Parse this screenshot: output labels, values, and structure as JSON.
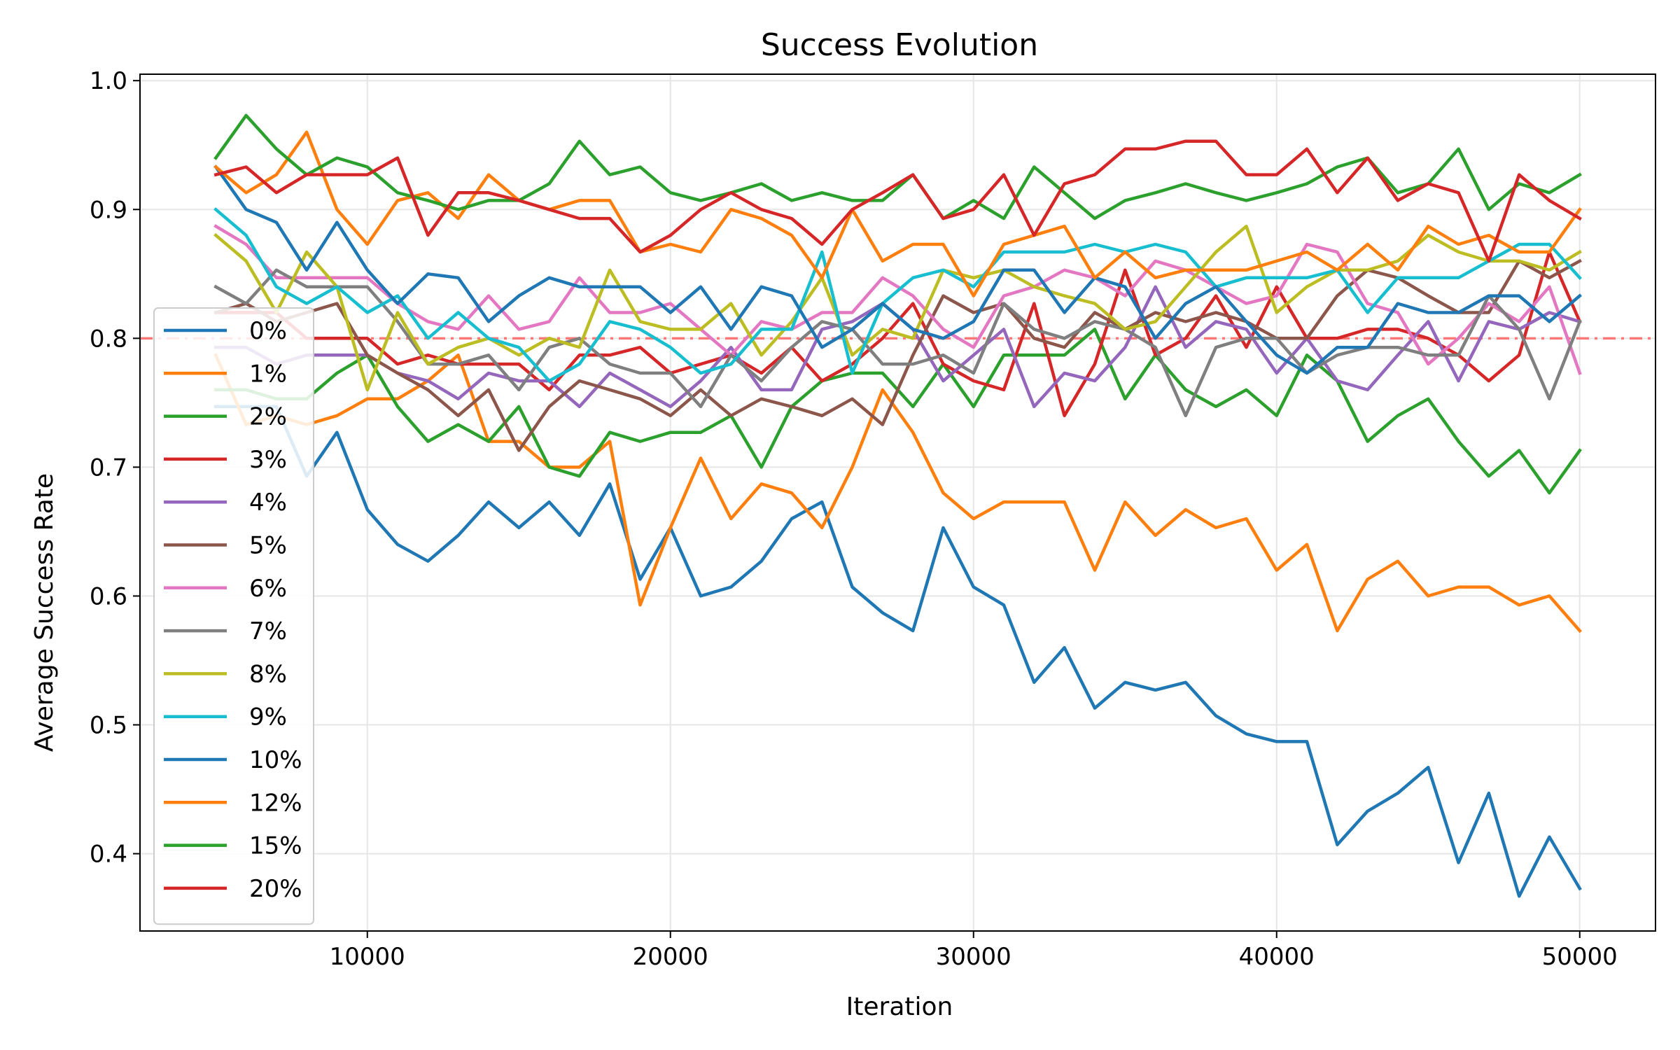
{
  "chart_data": {
    "type": "line",
    "title": "Success Evolution",
    "xlabel": "Iteration",
    "ylabel": "Average Success Rate",
    "xlim": [
      2500,
      52500
    ],
    "ylim": [
      0.34,
      1.005
    ],
    "xticks": [
      10000,
      20000,
      30000,
      40000,
      50000
    ],
    "xtick_labels": [
      "10000",
      "20000",
      "30000",
      "40000",
      "50000"
    ],
    "yticks": [
      0.4,
      0.5,
      0.6,
      0.7,
      0.8,
      0.9,
      1.0
    ],
    "ytick_labels": [
      "0.4",
      "0.5",
      "0.6",
      "0.7",
      "0.8",
      "0.9",
      "1.0"
    ],
    "grid": true,
    "legend_position": "center-left",
    "reference_line": {
      "y": 0.8,
      "style": "dashed",
      "color": "#ff6b6b"
    },
    "x": [
      5000,
      6000,
      7000,
      8000,
      9000,
      10000,
      11000,
      12000,
      13000,
      14000,
      15000,
      16000,
      17000,
      18000,
      19000,
      20000,
      21000,
      22000,
      23000,
      24000,
      25000,
      26000,
      27000,
      28000,
      29000,
      30000,
      31000,
      32000,
      33000,
      34000,
      35000,
      36000,
      37000,
      38000,
      39000,
      40000,
      41000,
      42000,
      43000,
      44000,
      45000,
      46000,
      47000,
      48000,
      49000,
      50000
    ],
    "series": [
      {
        "name": "0%",
        "color": "#1f77b4",
        "values": [
          0.747,
          0.747,
          0.747,
          0.693,
          0.727,
          0.667,
          0.64,
          0.627,
          0.647,
          0.673,
          0.653,
          0.673,
          0.647,
          0.687,
          0.613,
          0.653,
          0.6,
          0.607,
          0.627,
          0.66,
          0.673,
          0.607,
          0.587,
          0.573,
          0.653,
          0.607,
          0.593,
          0.533,
          0.56,
          0.513,
          0.533,
          0.527,
          0.533,
          0.507,
          0.493,
          0.487,
          0.487,
          0.407,
          0.433,
          0.447,
          0.467,
          0.393,
          0.447,
          0.367,
          0.413,
          0.373
        ]
      },
      {
        "name": "1%",
        "color": "#ff7f0e",
        "values": [
          0.787,
          0.733,
          0.74,
          0.733,
          0.74,
          0.753,
          0.753,
          0.767,
          0.787,
          0.72,
          0.72,
          0.7,
          0.7,
          0.72,
          0.593,
          0.653,
          0.707,
          0.66,
          0.687,
          0.68,
          0.653,
          0.7,
          0.76,
          0.727,
          0.68,
          0.66,
          0.673,
          0.673,
          0.673,
          0.62,
          0.673,
          0.647,
          0.667,
          0.653,
          0.66,
          0.62,
          0.64,
          0.573,
          0.613,
          0.627,
          0.6,
          0.607,
          0.607,
          0.593,
          0.6,
          0.573
        ]
      },
      {
        "name": "2%",
        "color": "#2ca02c",
        "values": [
          0.76,
          0.76,
          0.753,
          0.753,
          0.773,
          0.787,
          0.747,
          0.72,
          0.733,
          0.72,
          0.747,
          0.7,
          0.693,
          0.727,
          0.72,
          0.727,
          0.727,
          0.74,
          0.7,
          0.747,
          0.767,
          0.773,
          0.773,
          0.747,
          0.78,
          0.747,
          0.787,
          0.787,
          0.787,
          0.807,
          0.753,
          0.787,
          0.76,
          0.747,
          0.76,
          0.74,
          0.787,
          0.767,
          0.72,
          0.74,
          0.753,
          0.72,
          0.693,
          0.713,
          0.68,
          0.713
        ]
      },
      {
        "name": "3%",
        "color": "#d62728",
        "values": [
          0.82,
          0.82,
          0.82,
          0.8,
          0.8,
          0.8,
          0.78,
          0.787,
          0.78,
          0.78,
          0.78,
          0.76,
          0.787,
          0.787,
          0.793,
          0.773,
          0.78,
          0.787,
          0.773,
          0.793,
          0.767,
          0.78,
          0.8,
          0.827,
          0.78,
          0.767,
          0.76,
          0.827,
          0.74,
          0.78,
          0.853,
          0.787,
          0.8,
          0.833,
          0.793,
          0.84,
          0.8,
          0.8,
          0.807,
          0.807,
          0.8,
          0.787,
          0.767,
          0.787,
          0.867,
          0.813
        ]
      },
      {
        "name": "4%",
        "color": "#9467bd",
        "values": [
          0.793,
          0.793,
          0.78,
          0.787,
          0.787,
          0.787,
          0.773,
          0.767,
          0.753,
          0.773,
          0.767,
          0.767,
          0.747,
          0.773,
          0.76,
          0.747,
          0.767,
          0.793,
          0.76,
          0.76,
          0.807,
          0.813,
          0.827,
          0.807,
          0.767,
          0.787,
          0.807,
          0.747,
          0.773,
          0.767,
          0.793,
          0.84,
          0.793,
          0.813,
          0.807,
          0.773,
          0.8,
          0.767,
          0.76,
          0.787,
          0.813,
          0.767,
          0.813,
          0.807,
          0.82,
          0.813
        ]
      },
      {
        "name": "5%",
        "color": "#8c564b",
        "values": [
          0.82,
          0.827,
          0.813,
          0.82,
          0.827,
          0.787,
          0.773,
          0.76,
          0.74,
          0.76,
          0.713,
          0.747,
          0.767,
          0.76,
          0.753,
          0.74,
          0.76,
          0.74,
          0.753,
          0.747,
          0.74,
          0.753,
          0.733,
          0.787,
          0.833,
          0.82,
          0.827,
          0.8,
          0.793,
          0.82,
          0.807,
          0.82,
          0.813,
          0.82,
          0.813,
          0.8,
          0.8,
          0.833,
          0.853,
          0.847,
          0.833,
          0.82,
          0.82,
          0.86,
          0.847,
          0.86
        ]
      },
      {
        "name": "6%",
        "color": "#e377c2",
        "values": [
          0.887,
          0.873,
          0.847,
          0.847,
          0.847,
          0.847,
          0.827,
          0.813,
          0.807,
          0.833,
          0.807,
          0.813,
          0.847,
          0.82,
          0.82,
          0.827,
          0.807,
          0.787,
          0.813,
          0.807,
          0.82,
          0.82,
          0.847,
          0.833,
          0.807,
          0.793,
          0.833,
          0.84,
          0.853,
          0.847,
          0.833,
          0.86,
          0.853,
          0.84,
          0.827,
          0.833,
          0.873,
          0.867,
          0.827,
          0.82,
          0.78,
          0.8,
          0.827,
          0.813,
          0.84,
          0.773
        ]
      },
      {
        "name": "7%",
        "color": "#7f7f7f",
        "values": [
          0.84,
          0.827,
          0.853,
          0.84,
          0.84,
          0.84,
          0.813,
          0.78,
          0.78,
          0.787,
          0.76,
          0.793,
          0.8,
          0.78,
          0.773,
          0.773,
          0.747,
          0.787,
          0.767,
          0.793,
          0.813,
          0.807,
          0.78,
          0.78,
          0.787,
          0.773,
          0.827,
          0.807,
          0.8,
          0.813,
          0.807,
          0.793,
          0.74,
          0.793,
          0.8,
          0.8,
          0.773,
          0.787,
          0.793,
          0.793,
          0.787,
          0.787,
          0.833,
          0.807,
          0.753,
          0.813
        ]
      },
      {
        "name": "8%",
        "color": "#bcbd22",
        "values": [
          0.88,
          0.86,
          0.82,
          0.867,
          0.84,
          0.76,
          0.82,
          0.78,
          0.793,
          0.8,
          0.787,
          0.8,
          0.793,
          0.853,
          0.813,
          0.807,
          0.807,
          0.827,
          0.787,
          0.813,
          0.847,
          0.787,
          0.807,
          0.8,
          0.853,
          0.847,
          0.853,
          0.84,
          0.833,
          0.827,
          0.807,
          0.813,
          0.84,
          0.867,
          0.887,
          0.82,
          0.84,
          0.853,
          0.853,
          0.86,
          0.88,
          0.867,
          0.86,
          0.86,
          0.853,
          0.867
        ]
      },
      {
        "name": "9%",
        "color": "#17becf",
        "values": [
          0.9,
          0.88,
          0.84,
          0.827,
          0.84,
          0.82,
          0.833,
          0.8,
          0.82,
          0.8,
          0.793,
          0.767,
          0.78,
          0.813,
          0.807,
          0.793,
          0.773,
          0.78,
          0.807,
          0.807,
          0.867,
          0.773,
          0.827,
          0.847,
          0.853,
          0.84,
          0.867,
          0.867,
          0.867,
          0.873,
          0.867,
          0.873,
          0.867,
          0.84,
          0.847,
          0.847,
          0.847,
          0.853,
          0.82,
          0.847,
          0.847,
          0.847,
          0.86,
          0.873,
          0.873,
          0.847
        ]
      },
      {
        "name": "10%",
        "color": "#1f77b4",
        "values": [
          0.933,
          0.9,
          0.89,
          0.853,
          0.89,
          0.853,
          0.827,
          0.85,
          0.847,
          0.813,
          0.833,
          0.847,
          0.84,
          0.84,
          0.84,
          0.82,
          0.84,
          0.807,
          0.84,
          0.833,
          0.793,
          0.807,
          0.827,
          0.807,
          0.8,
          0.813,
          0.853,
          0.853,
          0.82,
          0.847,
          0.84,
          0.8,
          0.827,
          0.84,
          0.813,
          0.787,
          0.773,
          0.793,
          0.793,
          0.827,
          0.82,
          0.82,
          0.833,
          0.833,
          0.813,
          0.833
        ]
      },
      {
        "name": "12%",
        "color": "#ff7f0e",
        "values": [
          0.933,
          0.913,
          0.927,
          0.96,
          0.9,
          0.873,
          0.907,
          0.913,
          0.893,
          0.927,
          0.907,
          0.9,
          0.907,
          0.907,
          0.867,
          0.873,
          0.867,
          0.9,
          0.893,
          0.88,
          0.847,
          0.9,
          0.86,
          0.873,
          0.873,
          0.833,
          0.873,
          0.88,
          0.887,
          0.847,
          0.867,
          0.847,
          0.853,
          0.853,
          0.853,
          0.86,
          0.867,
          0.853,
          0.873,
          0.853,
          0.887,
          0.873,
          0.88,
          0.867,
          0.867,
          0.9
        ]
      },
      {
        "name": "15%",
        "color": "#2ca02c",
        "values": [
          0.94,
          0.973,
          0.947,
          0.927,
          0.94,
          0.933,
          0.913,
          0.907,
          0.9,
          0.907,
          0.907,
          0.92,
          0.953,
          0.927,
          0.933,
          0.913,
          0.907,
          0.913,
          0.92,
          0.907,
          0.913,
          0.907,
          0.907,
          0.927,
          0.893,
          0.907,
          0.893,
          0.933,
          0.913,
          0.893,
          0.907,
          0.913,
          0.92,
          0.913,
          0.907,
          0.913,
          0.92,
          0.933,
          0.94,
          0.913,
          0.92,
          0.947,
          0.9,
          0.92,
          0.913,
          0.927
        ]
      },
      {
        "name": "20%",
        "color": "#d62728",
        "values": [
          0.927,
          0.933,
          0.913,
          0.927,
          0.927,
          0.927,
          0.94,
          0.88,
          0.913,
          0.913,
          0.907,
          0.9,
          0.893,
          0.893,
          0.867,
          0.88,
          0.9,
          0.913,
          0.9,
          0.893,
          0.873,
          0.9,
          0.913,
          0.927,
          0.893,
          0.9,
          0.927,
          0.88,
          0.92,
          0.927,
          0.947,
          0.947,
          0.953,
          0.953,
          0.927,
          0.927,
          0.947,
          0.913,
          0.94,
          0.907,
          0.92,
          0.913,
          0.86,
          0.927,
          0.907,
          0.893
        ]
      }
    ]
  }
}
